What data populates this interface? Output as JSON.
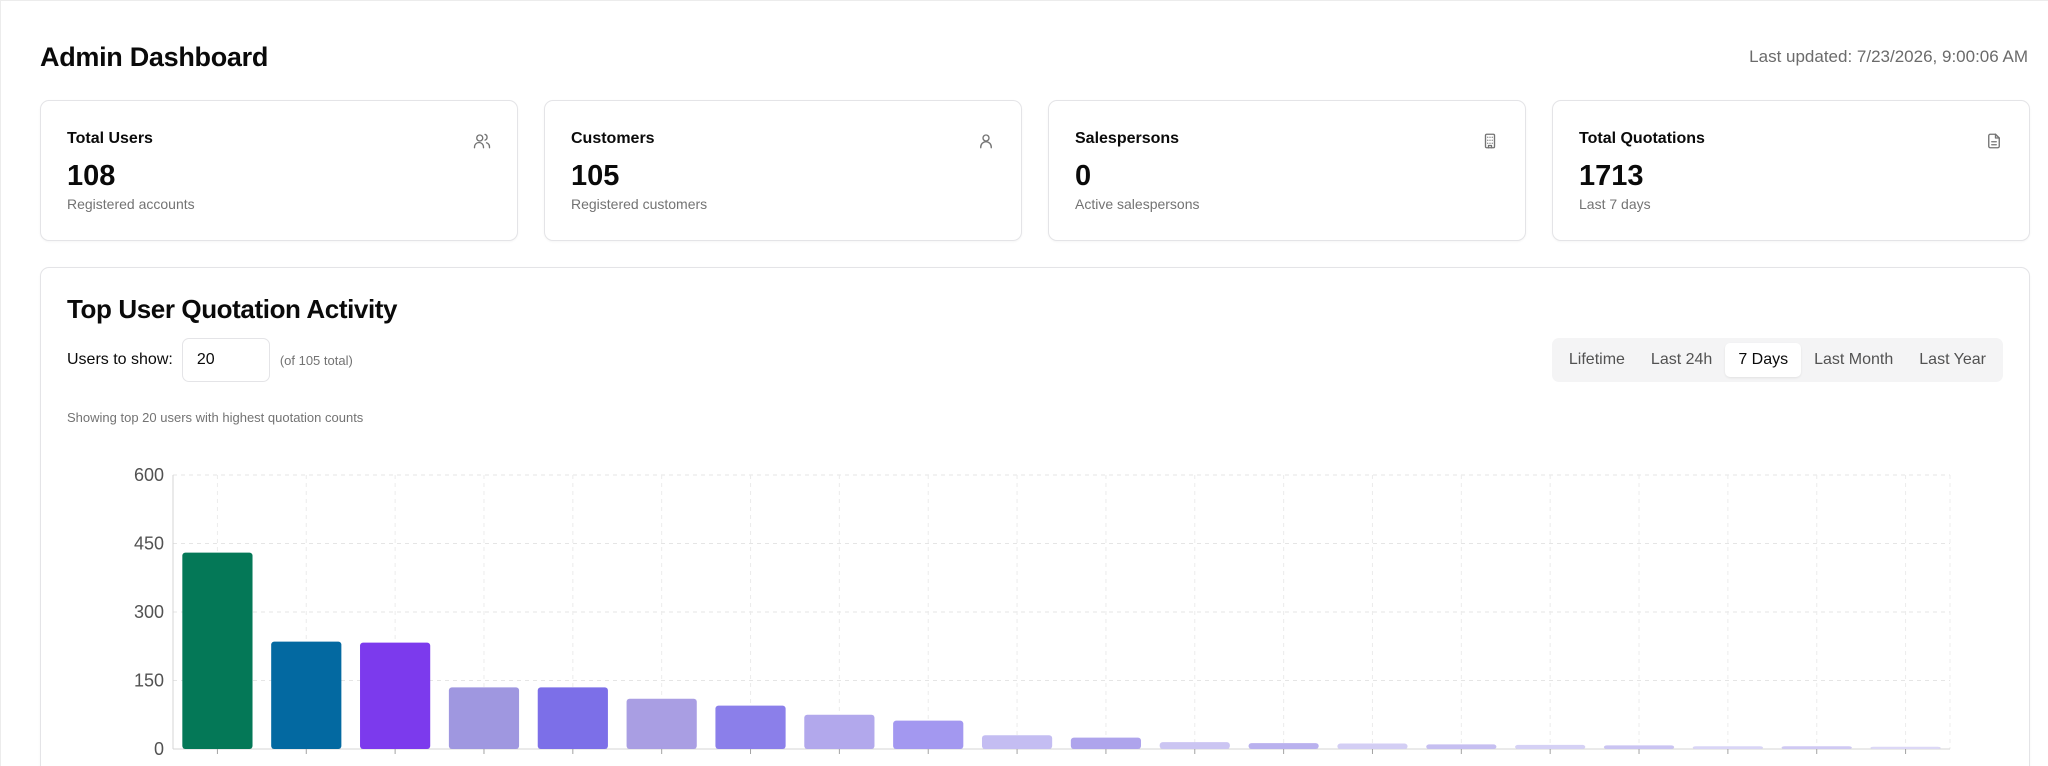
{
  "header": {
    "title": "Admin Dashboard",
    "last_updated": "Last updated: 7/23/2026, 9:00:06 AM"
  },
  "stats": [
    {
      "label": "Total Users",
      "value": "108",
      "sub": "Registered accounts",
      "icon": "users-icon"
    },
    {
      "label": "Customers",
      "value": "105",
      "sub": "Registered customers",
      "icon": "user-icon"
    },
    {
      "label": "Salespersons",
      "value": "0",
      "sub": "Active salespersons",
      "icon": "building-icon"
    },
    {
      "label": "Total Quotations",
      "value": "1713",
      "sub": "Last 7 days",
      "icon": "file-text-icon"
    }
  ],
  "activity": {
    "title": "Top User Quotation Activity",
    "users_label": "Users to show:",
    "users_value": "20",
    "users_total": "(of 105 total)",
    "ranges": [
      "Lifetime",
      "Last 24h",
      "7 Days",
      "Last Month",
      "Last Year"
    ],
    "active_range": "7 Days",
    "caption": "Showing top 20 users with highest quotation counts"
  },
  "chart_data": {
    "type": "bar",
    "categories": [
      "",
      "",
      "",
      "",
      "",
      "",
      "",
      "",
      "",
      "",
      "",
      "",
      "",
      "",
      "",
      "",
      "",
      "",
      "",
      ""
    ],
    "values": [
      430,
      235,
      233,
      135,
      135,
      110,
      95,
      75,
      62,
      30,
      25,
      15,
      13,
      12,
      10,
      9,
      8,
      6,
      6,
      5
    ],
    "colors": [
      "#047857",
      "#0369a1",
      "#7c3aed",
      "#9f97e0",
      "#7c6fe8",
      "#a99ee3",
      "#8b7fea",
      "#b2a8ec",
      "#a398f0",
      "#c4bdf2",
      "#aea4ec",
      "#cbc5f2",
      "#b9b1ee",
      "#d3cef4",
      "#c6bff1",
      "#d5d1f5",
      "#cac4f2",
      "#d9d5f6",
      "#cfc9f3",
      "#dcd8f6"
    ],
    "title": "",
    "xlabel": "",
    "ylabel": "",
    "ylim": [
      0,
      600
    ],
    "yticks": [
      0,
      150,
      300,
      450,
      600
    ],
    "grid": true
  }
}
